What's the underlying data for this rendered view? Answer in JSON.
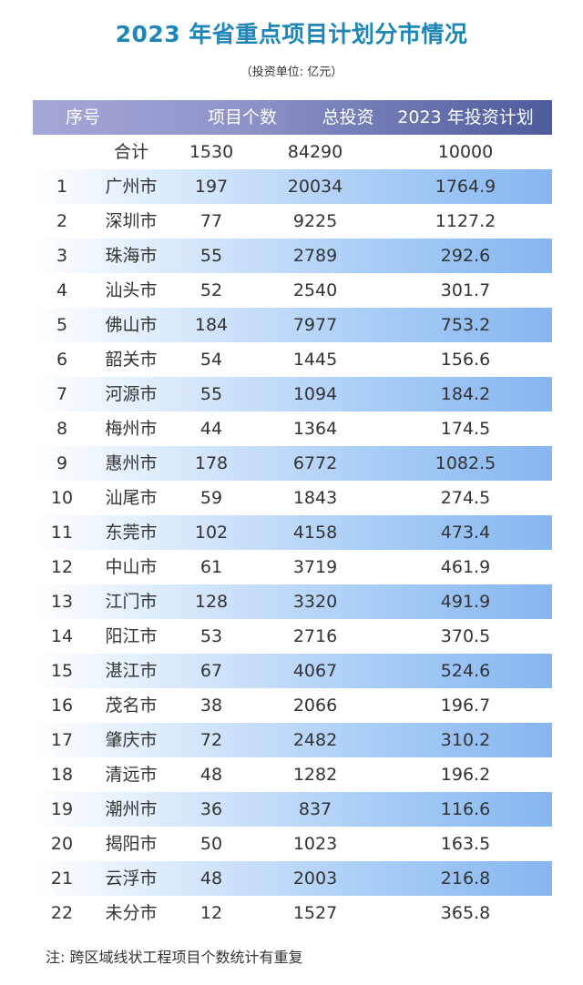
{
  "title": "2023 年省重点项目计划分市情况",
  "subtitle": "（投资单位: 亿元）",
  "colors": {
    "title": "#1f86b8",
    "header_start": "#a5a7d6",
    "header_end": "#4d5b9b",
    "row_shade": "#86b6f0"
  },
  "chart_data": {
    "type": "table",
    "columns": [
      "序号",
      "",
      "项目个数",
      "总投资",
      "2023 年投资计划"
    ],
    "total": {
      "label": "合计",
      "count": "1530",
      "total": "84290",
      "plan": "10000"
    },
    "rows": [
      [
        "1",
        "广州市",
        "197",
        "20034",
        "1764.9"
      ],
      [
        "2",
        "深圳市",
        "77",
        "9225",
        "1127.2"
      ],
      [
        "3",
        "珠海市",
        "55",
        "2789",
        "292.6"
      ],
      [
        "4",
        "汕头市",
        "52",
        "2540",
        "301.7"
      ],
      [
        "5",
        "佛山市",
        "184",
        "7977",
        "753.2"
      ],
      [
        "6",
        "韶关市",
        "54",
        "1445",
        "156.6"
      ],
      [
        "7",
        "河源市",
        "55",
        "1094",
        "184.2"
      ],
      [
        "8",
        "梅州市",
        "44",
        "1364",
        "174.5"
      ],
      [
        "9",
        "惠州市",
        "178",
        "6772",
        "1082.5"
      ],
      [
        "10",
        "汕尾市",
        "59",
        "1843",
        "274.5"
      ],
      [
        "11",
        "东莞市",
        "102",
        "4158",
        "473.4"
      ],
      [
        "12",
        "中山市",
        "61",
        "3719",
        "461.9"
      ],
      [
        "13",
        "江门市",
        "128",
        "3320",
        "491.9"
      ],
      [
        "14",
        "阳江市",
        "53",
        "2716",
        "370.5"
      ],
      [
        "15",
        "湛江市",
        "67",
        "4067",
        "524.6"
      ],
      [
        "16",
        "茂名市",
        "38",
        "2066",
        "196.7"
      ],
      [
        "17",
        "肇庆市",
        "72",
        "2482",
        "310.2"
      ],
      [
        "18",
        "清远市",
        "48",
        "1282",
        "196.2"
      ],
      [
        "19",
        "潮州市",
        "36",
        "837",
        "116.6"
      ],
      [
        "20",
        "揭阳市",
        "50",
        "1023",
        "163.5"
      ],
      [
        "21",
        "云浮市",
        "48",
        "2003",
        "216.8"
      ],
      [
        "22",
        "未分市",
        "12",
        "1527",
        "365.8"
      ]
    ]
  },
  "note": "注: 跨区域线状工程项目个数统计有重复"
}
